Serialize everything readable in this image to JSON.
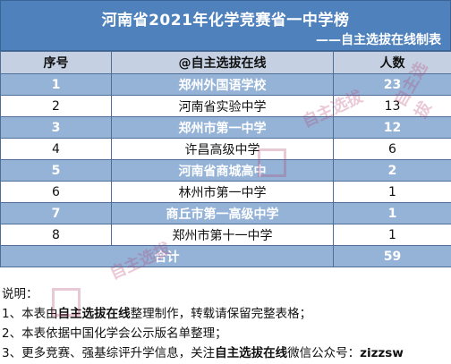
{
  "title": "河南省2021年化学竞赛省一中学榜",
  "subtitle": "——自主选拔在线制表",
  "headers": [
    "序号",
    "@自主选拔在线",
    "人数"
  ],
  "rows": [
    {
      "no": "1",
      "school": "郑州外国语学校",
      "count": "23",
      "highlight": true
    },
    {
      "no": "2",
      "school": "河南省实验中学",
      "count": "13",
      "highlight": false
    },
    {
      "no": "3",
      "school": "郑州市第一中学",
      "count": "12",
      "highlight": true
    },
    {
      "no": "4",
      "school": "许昌高级中学",
      "count": "6",
      "highlight": false
    },
    {
      "no": "5",
      "school": "河南省商城高中",
      "count": "2",
      "highlight": true
    },
    {
      "no": "6",
      "school": "林州市第一中学",
      "count": "1",
      "highlight": false
    },
    {
      "no": "7",
      "school": "商丘市第一高级中学",
      "count": "1",
      "highlight": true
    },
    {
      "no": "8",
      "school": "郑州市第十一中学",
      "count": "1",
      "highlight": false
    }
  ],
  "total": {
    "label": "合计",
    "count": "59"
  },
  "notes": {
    "heading": "说明：",
    "line1_pre": "1、本表由",
    "line1_bold": "自主选拔在线",
    "line1_post": "整理制作，转载请保留完整表格；",
    "line2": "2、本表依据中国化学会公示版名单整理；",
    "line3_pre": "3、更多竞赛、强基综评升学信息，关注",
    "line3_bold": "自主选拔在线",
    "line3_mid": "微信公众号：",
    "line3_id": "zizzsw"
  },
  "watermark_text": "自主选拔"
}
